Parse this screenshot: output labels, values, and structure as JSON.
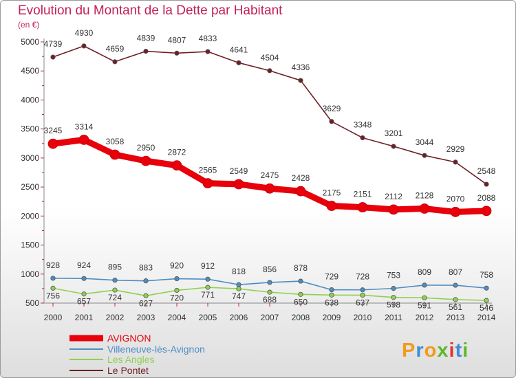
{
  "title": "Evolution du Montant de la Dette par Habitant",
  "unit": "(en €)",
  "logo": {
    "letters": [
      "P",
      "r",
      "o",
      "x",
      "i",
      "t",
      "i"
    ],
    "colors": [
      "#f29b1d",
      "#3d8fd4",
      "#f29b1d",
      "#5cb82e",
      "#e2332f",
      "#3d8fd4",
      "#5cb82e"
    ]
  },
  "chart_data": {
    "type": "line",
    "x": [
      "2000",
      "2001",
      "2002",
      "2003",
      "2004",
      "2005",
      "2006",
      "2007",
      "2008",
      "2009",
      "2010",
      "2011",
      "2012",
      "2013",
      "2014"
    ],
    "ylim": [
      500,
      5000
    ],
    "yticks": [
      "500",
      "1000",
      "1500",
      "2000",
      "2500",
      "3000",
      "3500",
      "4000",
      "4500",
      "5000"
    ],
    "grid": false,
    "legend_position": "bottom-left",
    "series": [
      {
        "name": "AVIGNON",
        "color": "#e8000b",
        "values": [
          3245,
          3314,
          3058,
          2950,
          2872,
          2565,
          2549,
          2475,
          2428,
          2175,
          2151,
          2112,
          2128,
          2070,
          2088
        ]
      },
      {
        "name": "Villeneuve-lès-Avignon",
        "color": "#4d8dc3",
        "values": [
          928,
          924,
          895,
          883,
          920,
          912,
          818,
          856,
          878,
          729,
          728,
          753,
          809,
          807,
          758
        ]
      },
      {
        "name": "Les Angles",
        "color": "#8fd04f",
        "values": [
          756,
          657,
          724,
          627,
          720,
          771,
          747,
          688,
          650,
          638,
          637,
          598,
          591,
          561,
          546
        ]
      },
      {
        "name": "Le Pontet",
        "color": "#6e1f26",
        "values": [
          4739,
          4930,
          4659,
          4839,
          4807,
          4833,
          4641,
          4504,
          4336,
          3629,
          3348,
          3201,
          3044,
          2929,
          2548
        ]
      }
    ]
  }
}
